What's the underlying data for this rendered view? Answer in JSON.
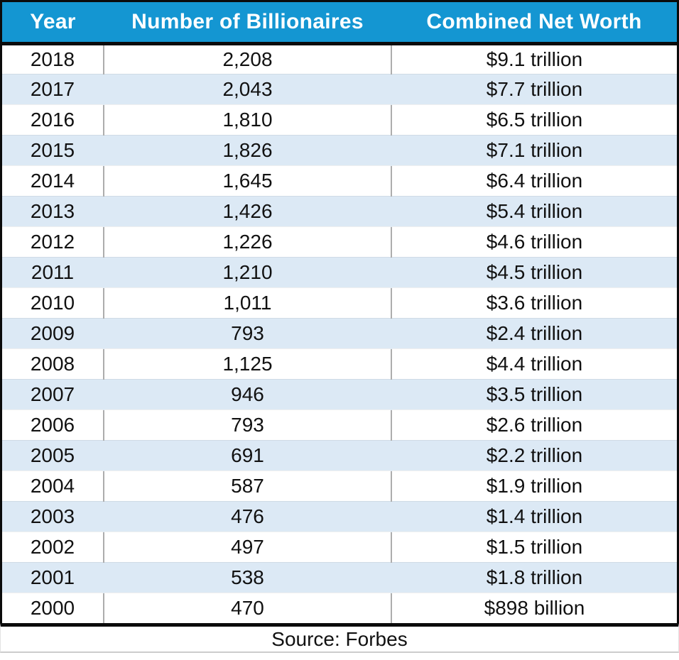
{
  "table": {
    "columns": [
      "Year",
      "Number of Billionaires",
      "Combined Net Worth"
    ],
    "rows": [
      {
        "year": "2018",
        "billionaires": "2,208",
        "net_worth": "$9.1 trillion"
      },
      {
        "year": "2017",
        "billionaires": "2,043",
        "net_worth": "$7.7 trillion"
      },
      {
        "year": "2016",
        "billionaires": "1,810",
        "net_worth": "$6.5 trillion"
      },
      {
        "year": "2015",
        "billionaires": "1,826",
        "net_worth": "$7.1 trillion"
      },
      {
        "year": "2014",
        "billionaires": "1,645",
        "net_worth": "$6.4 trillion"
      },
      {
        "year": "2013",
        "billionaires": "1,426",
        "net_worth": "$5.4 trillion"
      },
      {
        "year": "2012",
        "billionaires": "1,226",
        "net_worth": "$4.6 trillion"
      },
      {
        "year": "2011",
        "billionaires": "1,210",
        "net_worth": "$4.5 trillion"
      },
      {
        "year": "2010",
        "billionaires": "1,011",
        "net_worth": "$3.6 trillion"
      },
      {
        "year": "2009",
        "billionaires": "793",
        "net_worth": "$2.4 trillion"
      },
      {
        "year": "2008",
        "billionaires": "1,125",
        "net_worth": "$4.4 trillion"
      },
      {
        "year": "2007",
        "billionaires": "946",
        "net_worth": "$3.5 trillion"
      },
      {
        "year": "2006",
        "billionaires": "793",
        "net_worth": "$2.6 trillion"
      },
      {
        "year": "2005",
        "billionaires": "691",
        "net_worth": "$2.2 trillion"
      },
      {
        "year": "2004",
        "billionaires": "587",
        "net_worth": "$1.9 trillion"
      },
      {
        "year": "2003",
        "billionaires": "476",
        "net_worth": "$1.4 trillion"
      },
      {
        "year": "2002",
        "billionaires": "497",
        "net_worth": "$1.5 trillion"
      },
      {
        "year": "2001",
        "billionaires": "538",
        "net_worth": "$1.8 trillion"
      },
      {
        "year": "2000",
        "billionaires": "470",
        "net_worth": "$898 billion"
      }
    ],
    "source": "Source: Forbes"
  },
  "colors": {
    "header_bg": "#1496d2",
    "header_text": "#ffffff",
    "row_stripe_bg": "#dce9f5",
    "row_text": "#111111",
    "frame_border": "#0b0b0b",
    "column_divider": "#adadad"
  },
  "chart_data": {
    "type": "table",
    "title": "",
    "columns": [
      "Year",
      "Number of Billionaires",
      "Combined Net Worth"
    ],
    "years": [
      2018,
      2017,
      2016,
      2015,
      2014,
      2013,
      2012,
      2011,
      2010,
      2009,
      2008,
      2007,
      2006,
      2005,
      2004,
      2003,
      2002,
      2001,
      2000
    ],
    "series": [
      {
        "name": "Number of Billionaires",
        "values": [
          2208,
          2043,
          1810,
          1826,
          1645,
          1426,
          1226,
          1210,
          1011,
          793,
          1125,
          946,
          793,
          691,
          587,
          476,
          497,
          538,
          470
        ]
      },
      {
        "name": "Combined Net Worth (USD trillions)",
        "values": [
          9.1,
          7.7,
          6.5,
          7.1,
          6.4,
          5.4,
          4.6,
          4.5,
          3.6,
          2.4,
          4.4,
          3.5,
          2.6,
          2.2,
          1.9,
          1.4,
          1.5,
          1.8,
          0.898
        ]
      }
    ],
    "source": "Source: Forbes"
  }
}
